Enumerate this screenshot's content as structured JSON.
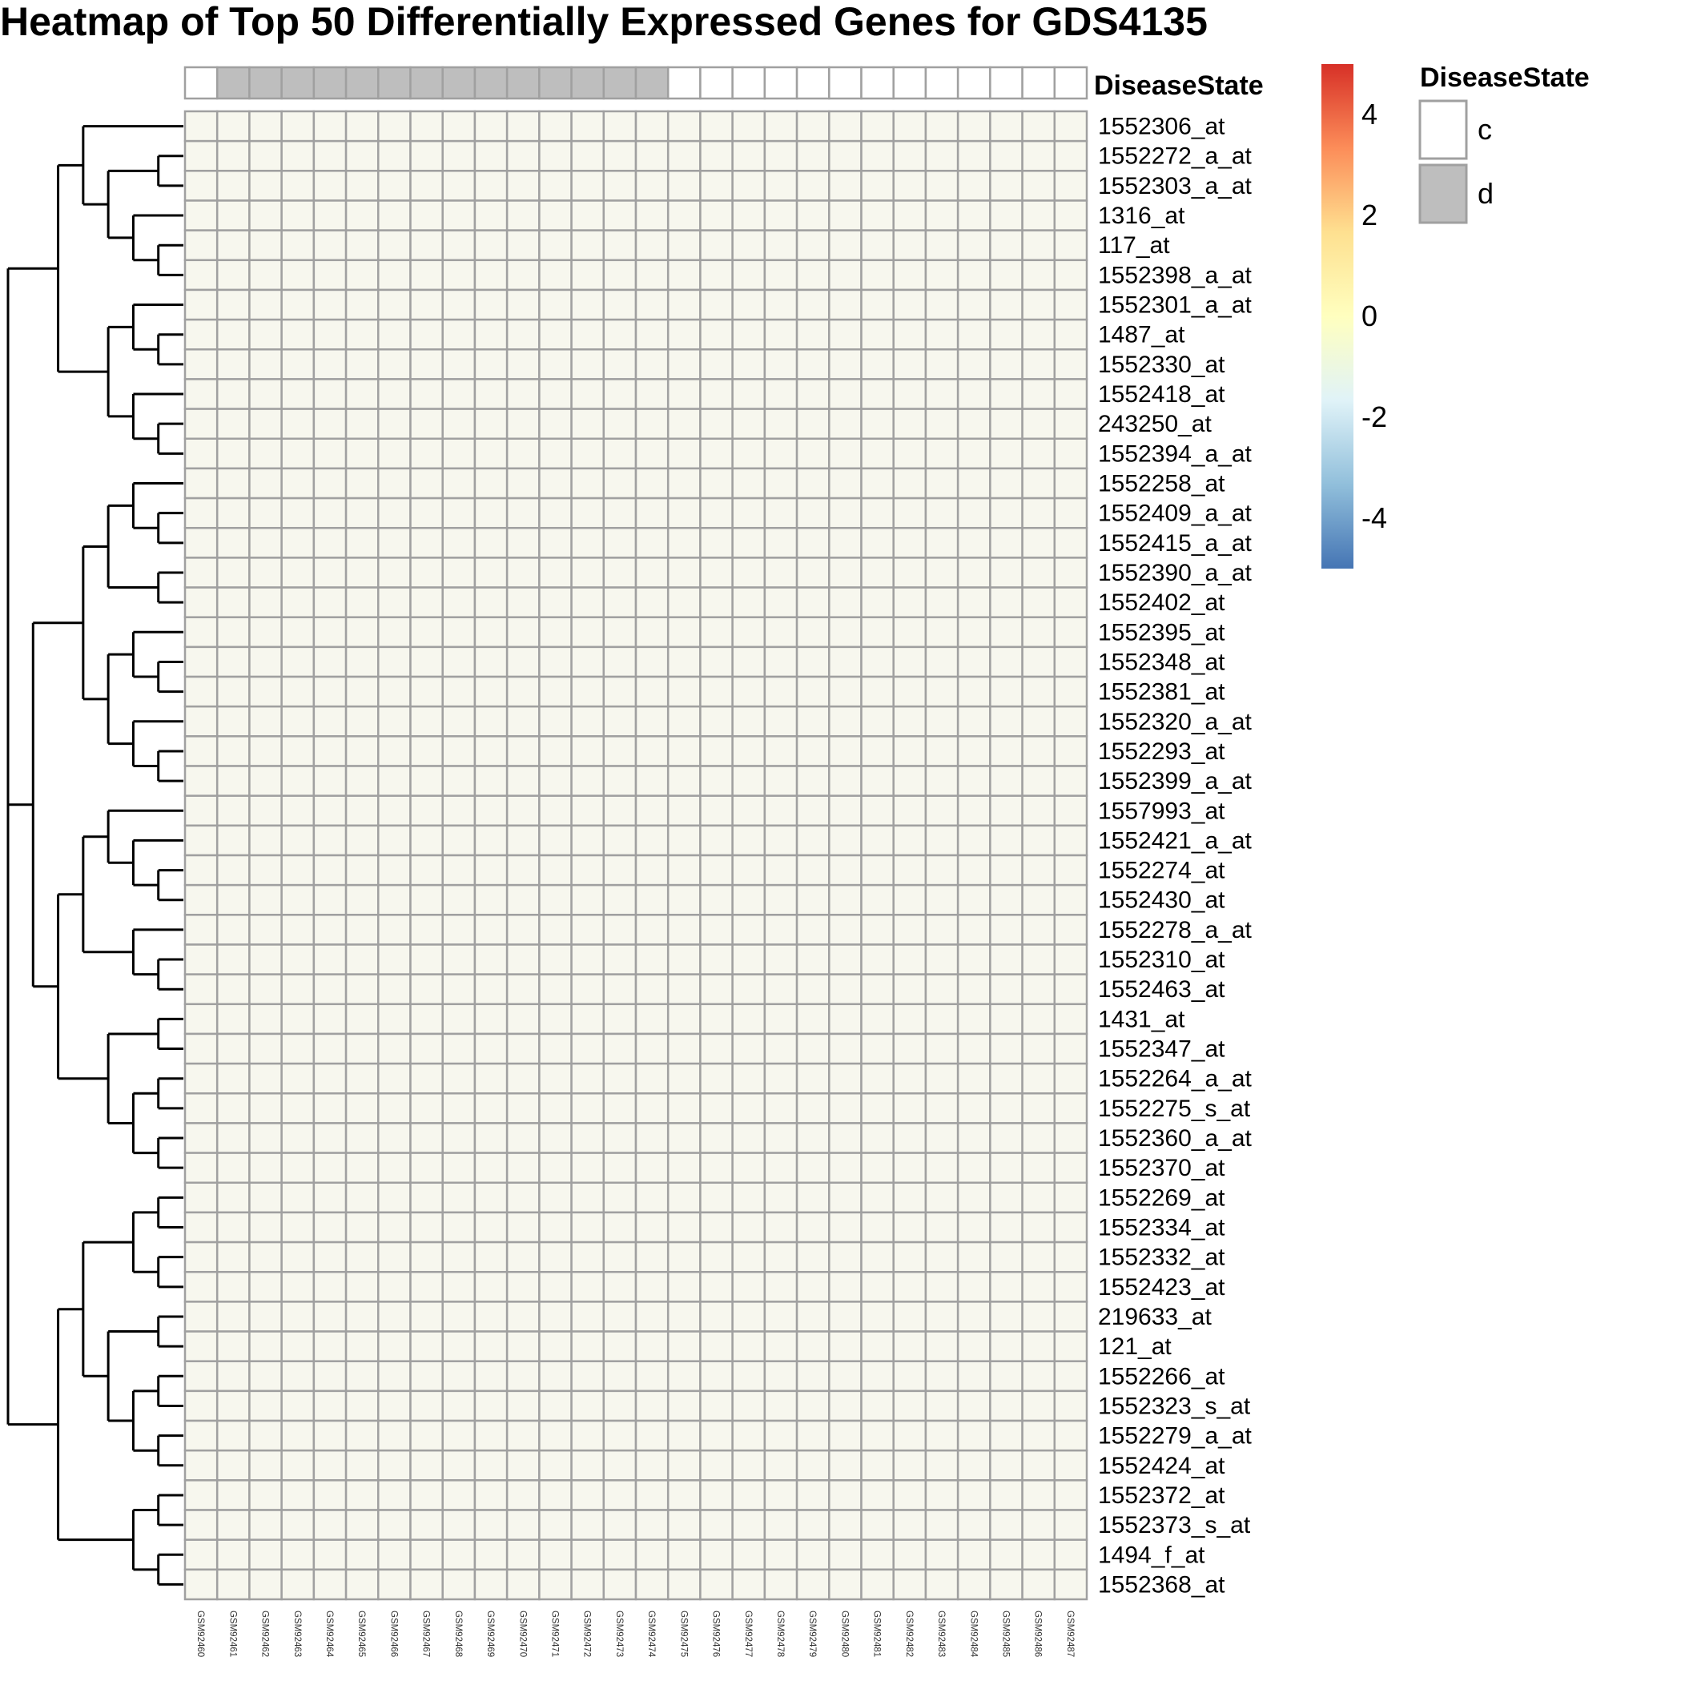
{
  "chart_data": {
    "type": "heatmap",
    "title": "Heatmap of Top 50 Differentially Expressed Genes for GDS4135",
    "row_labels": [
      "1552306_at",
      "1552272_a_at",
      "1552303_a_at",
      "1316_at",
      "117_at",
      "1552398_a_at",
      "1552301_a_at",
      "1487_at",
      "1552330_at",
      "1552418_at",
      "243250_at",
      "1552394_a_at",
      "1552258_at",
      "1552409_a_at",
      "1552415_a_at",
      "1552390_a_at",
      "1552402_at",
      "1552395_at",
      "1552348_at",
      "1552381_at",
      "1552320_a_at",
      "1552293_at",
      "1552399_a_at",
      "1557993_at",
      "1552421_a_at",
      "1552274_at",
      "1552430_at",
      "1552278_a_at",
      "1552310_at",
      "1552463_at",
      "1431_at",
      "1552347_at",
      "1552264_a_at",
      "1552275_s_at",
      "1552360_a_at",
      "1552370_at",
      "1552269_at",
      "1552334_at",
      "1552332_at",
      "1552423_at",
      "219633_at",
      "121_at",
      "1552266_at",
      "1552323_s_at",
      "1552279_a_at",
      "1552424_at",
      "1552372_at",
      "1552373_s_at",
      "1494_f_at",
      "1552368_at"
    ],
    "column_labels": [
      "GSM92460",
      "GSM92461",
      "GSM92462",
      "GSM92463",
      "GSM92464",
      "GSM92465",
      "GSM92466",
      "GSM92467",
      "GSM92468",
      "GSM92469",
      "GSM92470",
      "GSM92471",
      "GSM92472",
      "GSM92473",
      "GSM92474",
      "GSM92475",
      "GSM92476",
      "GSM92477",
      "GSM92478",
      "GSM92479",
      "GSM92480",
      "GSM92481",
      "GSM92482",
      "GSM92483",
      "GSM92484",
      "GSM92485",
      "GSM92486",
      "GSM92487"
    ],
    "column_annotation": {
      "name": "DiseaseState",
      "values": [
        "c",
        "d",
        "d",
        "d",
        "d",
        "d",
        "d",
        "d",
        "d",
        "d",
        "d",
        "d",
        "d",
        "d",
        "d",
        "c",
        "c",
        "c",
        "c",
        "c",
        "c",
        "c",
        "c",
        "c",
        "c",
        "c",
        "c",
        "c"
      ]
    },
    "color_scale": {
      "min": -5,
      "max": 5,
      "ticks": [
        4,
        2,
        0,
        -2,
        -4
      ],
      "colors": [
        "#4575b4",
        "#91bfdb",
        "#e0f3f8",
        "#ffffbf",
        "#fee090",
        "#fc8d59",
        "#d73027"
      ]
    },
    "annotation_legend": {
      "title": "DiseaseState",
      "items": [
        {
          "label": "c",
          "color": "#ffffff"
        },
        {
          "label": "d",
          "color": "#bebebe"
        }
      ]
    },
    "cell_border_color": "#a0a0a0",
    "values": "cell values not included (see note above)"
  }
}
